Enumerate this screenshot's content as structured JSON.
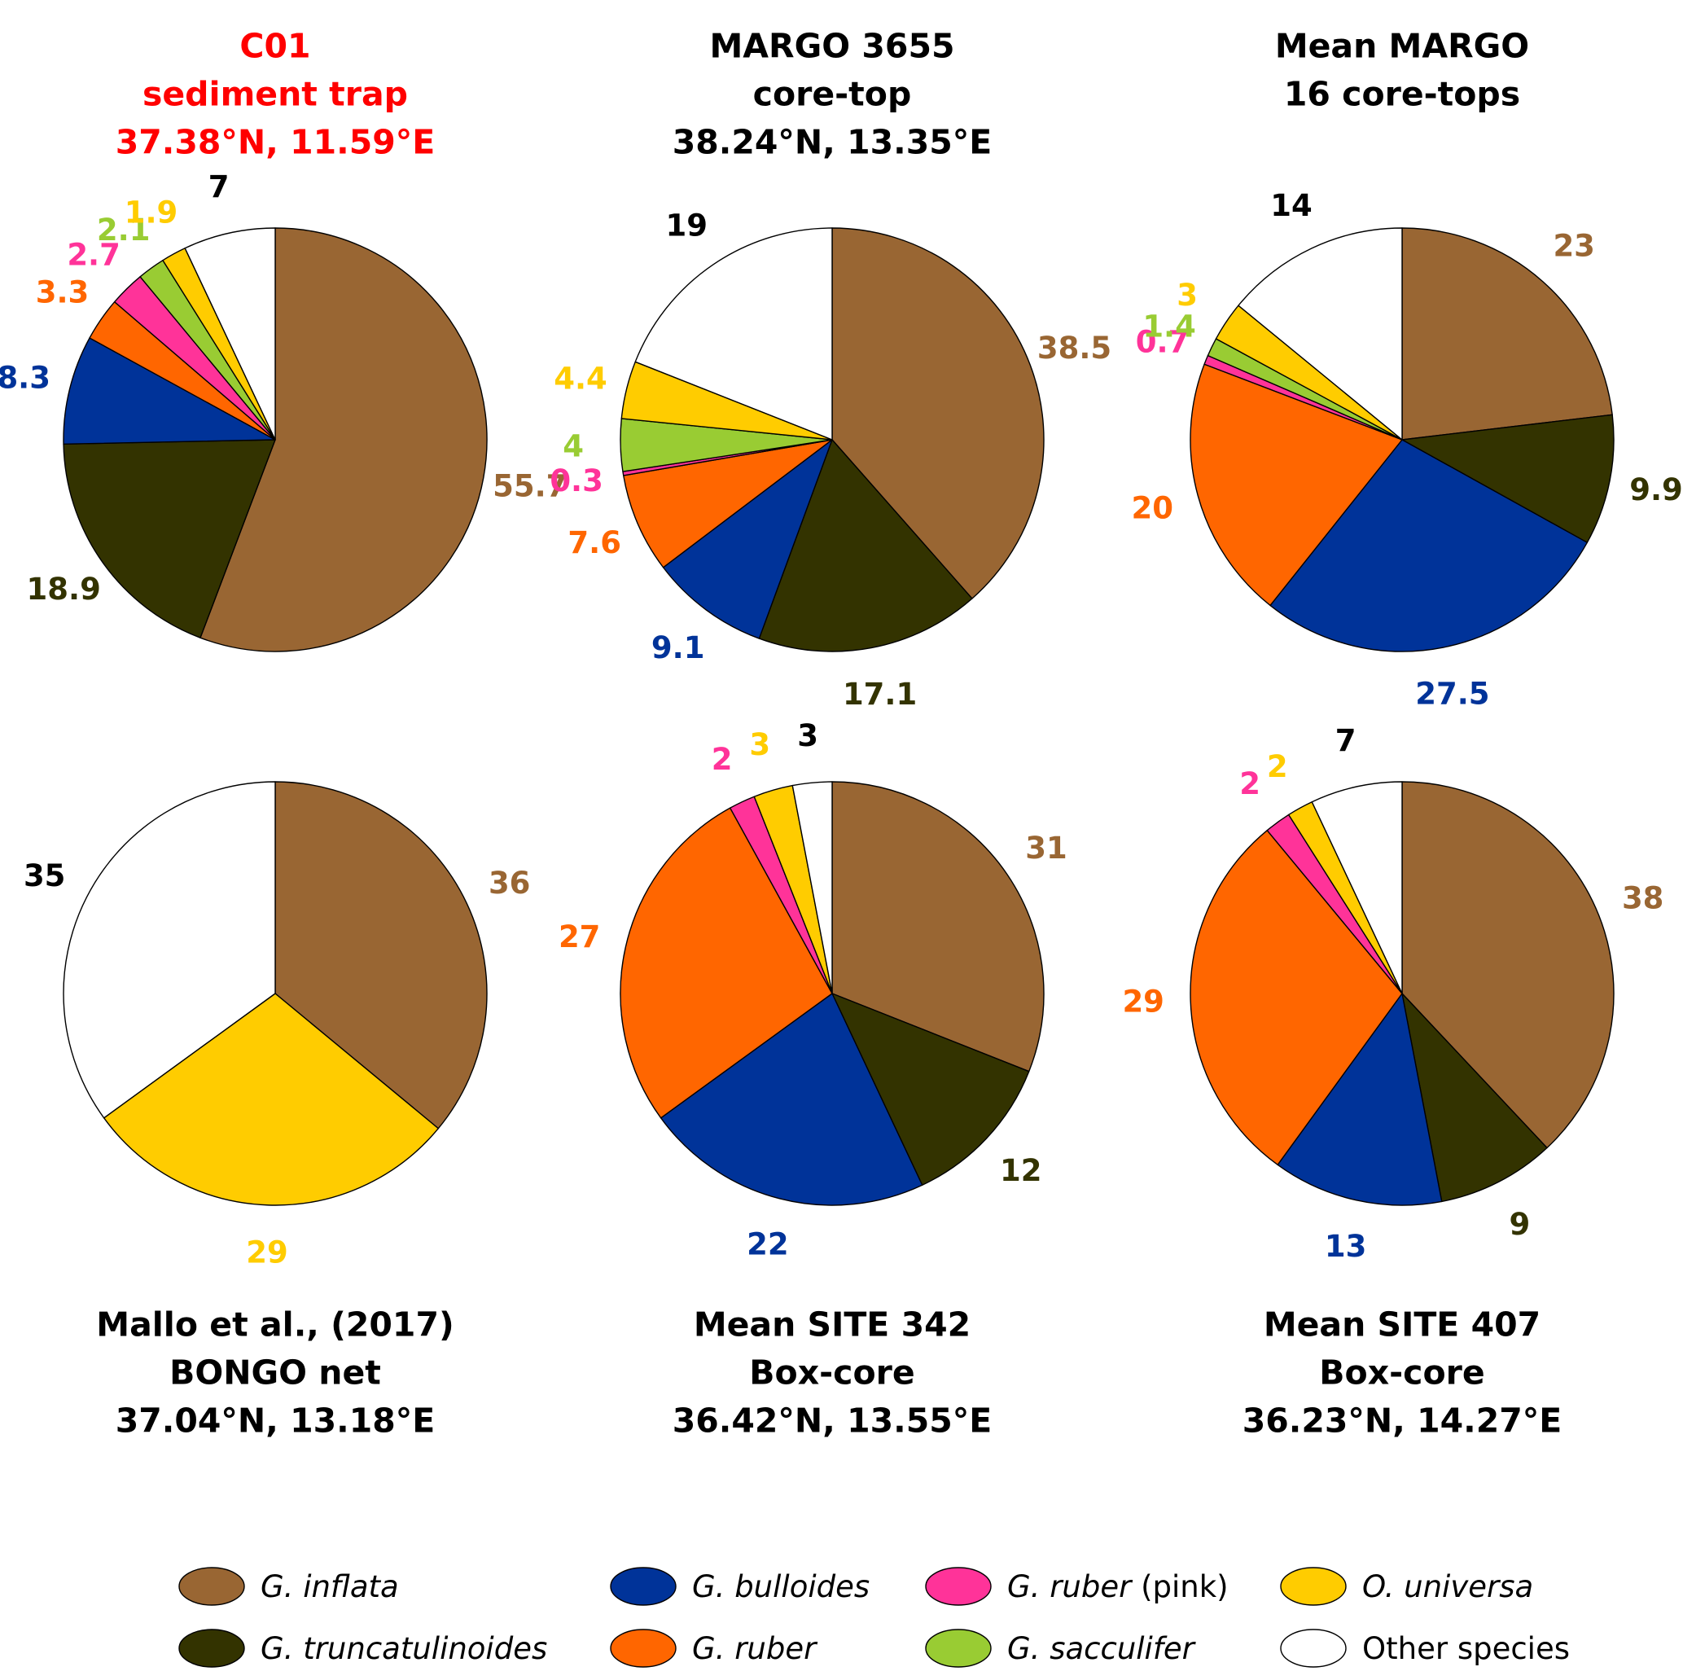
{
  "colors": {
    "G. inflata": "#996633",
    "G. truncatulinoides": "#333300",
    "G. bulloides": "#003399",
    "G. ruber": "#ff6600",
    "G. ruber (pink)": "#ff3399",
    "G. sacculifer": "#99cc33",
    "O. universa": "#ffcc00",
    "Other species": "#ffffff"
  },
  "label_colors": {
    "G. inflata": "#996633",
    "G. truncatulinoides": "#333300",
    "G. bulloides": "#003399",
    "G. ruber": "#ff6600",
    "G. ruber (pink)": "#ff3399",
    "G. sacculifer": "#99cc33",
    "O. universa": "#ffcc00",
    "Other species": "#000000"
  },
  "chart_data": [
    {
      "type": "pie",
      "title_lines": [
        "C01",
        "sediment trap",
        "37.38°N, 11.59°E"
      ],
      "title_color": "#ff0000",
      "slices": [
        {
          "category": "G. inflata",
          "value": 55.7,
          "label": "55.7"
        },
        {
          "category": "G. truncatulinoides",
          "value": 18.9,
          "label": "18.9"
        },
        {
          "category": "G. bulloides",
          "value": 8.3,
          "label": "8.3"
        },
        {
          "category": "G. ruber",
          "value": 3.3,
          "label": "3.3"
        },
        {
          "category": "G. ruber (pink)",
          "value": 2.7,
          "label": "2.7"
        },
        {
          "category": "G. sacculifer",
          "value": 2.1,
          "label": "2.1"
        },
        {
          "category": "O. universa",
          "value": 1.9,
          "label": "1.9"
        },
        {
          "category": "Other species",
          "value": 7,
          "label": "7"
        }
      ]
    },
    {
      "type": "pie",
      "title_lines": [
        "MARGO 3655",
        "core-top",
        "38.24°N, 13.35°E"
      ],
      "title_color": "#000000",
      "slices": [
        {
          "category": "G. inflata",
          "value": 38.5,
          "label": "38.5"
        },
        {
          "category": "G. truncatulinoides",
          "value": 17.1,
          "label": "17.1"
        },
        {
          "category": "G. bulloides",
          "value": 9.1,
          "label": "9.1"
        },
        {
          "category": "G. ruber",
          "value": 7.6,
          "label": "7.6"
        },
        {
          "category": "G. ruber (pink)",
          "value": 0.3,
          "label": "0.3"
        },
        {
          "category": "G. sacculifer",
          "value": 4,
          "label": "4"
        },
        {
          "category": "O. universa",
          "value": 4.4,
          "label": "4.4"
        },
        {
          "category": "Other species",
          "value": 19,
          "label": "19"
        }
      ]
    },
    {
      "type": "pie",
      "title_lines": [
        "Mean MARGO",
        "16 core-tops"
      ],
      "title_color": "#000000",
      "slices": [
        {
          "category": "G. inflata",
          "value": 23,
          "label": "23"
        },
        {
          "category": "G. truncatulinoides",
          "value": 9.9,
          "label": "9.9"
        },
        {
          "category": "G. bulloides",
          "value": 27.5,
          "label": "27.5"
        },
        {
          "category": "G. ruber",
          "value": 20,
          "label": "20"
        },
        {
          "category": "G. ruber (pink)",
          "value": 0.7,
          "label": "0.7"
        },
        {
          "category": "G. sacculifer",
          "value": 1.4,
          "label": "1.4"
        },
        {
          "category": "O. universa",
          "value": 3,
          "label": "3"
        },
        {
          "category": "Other species",
          "value": 14,
          "label": "14"
        }
      ]
    },
    {
      "type": "pie",
      "title_lines": [
        "Mallo et al., (2017)",
        "BONGO net",
        "37.04°N, 13.18°E"
      ],
      "title_color": "#000000",
      "slices": [
        {
          "category": "G. inflata",
          "value": 36,
          "label": "36"
        },
        {
          "category": "O. universa",
          "value": 29,
          "label": "29"
        },
        {
          "category": "Other species",
          "value": 35,
          "label": "35"
        }
      ]
    },
    {
      "type": "pie",
      "title_lines": [
        "Mean SITE 342",
        "Box-core",
        "36.42°N, 13.55°E"
      ],
      "title_color": "#000000",
      "slices": [
        {
          "category": "G. inflata",
          "value": 31,
          "label": "31"
        },
        {
          "category": "G. truncatulinoides",
          "value": 12,
          "label": "12"
        },
        {
          "category": "G. bulloides",
          "value": 22,
          "label": "22"
        },
        {
          "category": "G. ruber",
          "value": 27,
          "label": "27"
        },
        {
          "category": "G. ruber (pink)",
          "value": 2,
          "label": "2"
        },
        {
          "category": "O. universa",
          "value": 3,
          "label": "3"
        },
        {
          "category": "Other species",
          "value": 3,
          "label": "3"
        }
      ]
    },
    {
      "type": "pie",
      "title_lines": [
        "Mean SITE 407",
        "Box-core",
        "36.23°N, 14.27°E"
      ],
      "title_color": "#000000",
      "slices": [
        {
          "category": "G. inflata",
          "value": 38,
          "label": "38"
        },
        {
          "category": "G. truncatulinoides",
          "value": 9,
          "label": "9"
        },
        {
          "category": "G. bulloides",
          "value": 13,
          "label": "13"
        },
        {
          "category": "G. ruber",
          "value": 29,
          "label": "29"
        },
        {
          "category": "G. ruber (pink)",
          "value": 2,
          "label": "2"
        },
        {
          "category": "O. universa",
          "value": 2,
          "label": "2"
        },
        {
          "category": "Other species",
          "value": 7,
          "label": "7"
        }
      ]
    }
  ],
  "legend": [
    {
      "category": "G. inflata",
      "text": "G. inflata",
      "suffix": ""
    },
    {
      "category": "G. bulloides",
      "text": "G. bulloides",
      "suffix": ""
    },
    {
      "category": "G. ruber (pink)",
      "text": "G. ruber",
      "suffix": " (pink)"
    },
    {
      "category": "O. universa",
      "text": "O. universa",
      "suffix": ""
    },
    {
      "category": "G. truncatulinoides",
      "text": "G. truncatulinoides",
      "suffix": ""
    },
    {
      "category": "G. ruber",
      "text": "G. ruber",
      "suffix": ""
    },
    {
      "category": "G. sacculifer",
      "text": "G. sacculifer",
      "suffix": ""
    },
    {
      "category": "Other species",
      "text": "Other species",
      "suffix": ""
    }
  ]
}
